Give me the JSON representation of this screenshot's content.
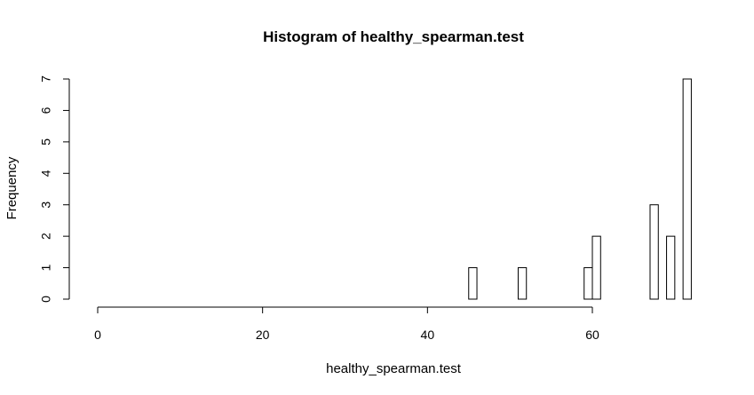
{
  "chart_data": {
    "type": "bar",
    "title": "Histogram of healthy_spearman.test",
    "xlabel": "healthy_spearman.test",
    "ylabel": "Frequency",
    "xlim": [
      0,
      72
    ],
    "ylim": [
      0,
      7
    ],
    "x_ticks": [
      0,
      20,
      40,
      60
    ],
    "y_ticks": [
      0,
      1,
      2,
      3,
      4,
      5,
      6,
      7
    ],
    "bin_width": 1,
    "bins": [
      {
        "start": 45,
        "end": 46,
        "count": 1
      },
      {
        "start": 51,
        "end": 52,
        "count": 1
      },
      {
        "start": 59,
        "end": 60,
        "count": 1
      },
      {
        "start": 60,
        "end": 61,
        "count": 2
      },
      {
        "start": 67,
        "end": 68,
        "count": 3
      },
      {
        "start": 69,
        "end": 70,
        "count": 2
      },
      {
        "start": 71,
        "end": 72,
        "count": 7
      }
    ],
    "grid": false,
    "fill_color": "#ffffff",
    "stroke_color": "#000000"
  }
}
